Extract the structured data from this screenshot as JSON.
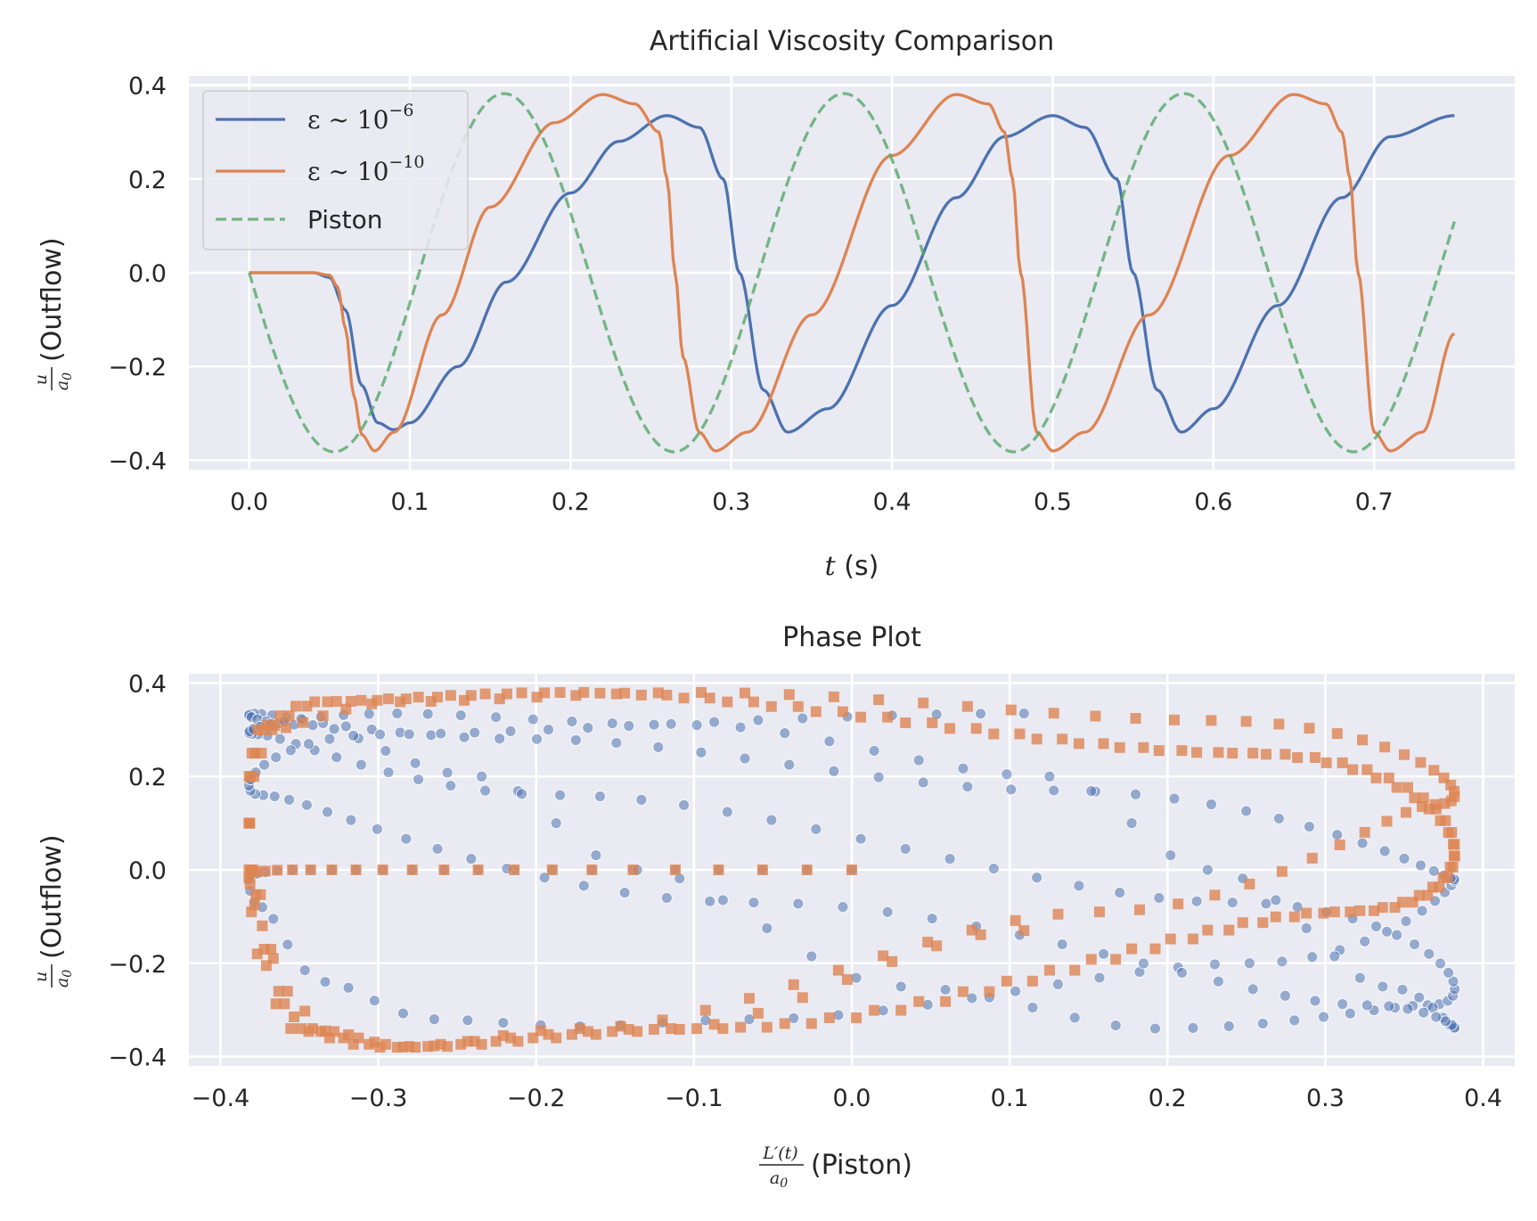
{
  "chart_data": [
    {
      "type": "line",
      "title": "Artificial Viscosity Comparison",
      "xlabel": "t (s)",
      "xlabel_math": "t",
      "xlabel_unit": " (s)",
      "ylabel": "u/a0 (Outflow)",
      "ylabel_suffix": " (Outflow)",
      "xlim": [
        -0.0375,
        0.7875
      ],
      "ylim": [
        -0.42,
        0.42
      ],
      "xticks": [
        0.0,
        0.1,
        0.2,
        0.3,
        0.4,
        0.5,
        0.6,
        0.7
      ],
      "xtick_labels": [
        "0.0",
        "0.1",
        "0.2",
        "0.3",
        "0.4",
        "0.5",
        "0.6",
        "0.7"
      ],
      "yticks": [
        -0.4,
        -0.2,
        0.0,
        0.2,
        0.4
      ],
      "ytick_labels": [
        "−0.4",
        "−0.2",
        "0.0",
        "0.2",
        "0.4"
      ],
      "grid": true,
      "legend_position": "upper-left",
      "series": [
        {
          "name": "ε ~ 10^-6",
          "legend_main": "ε ∼ 10",
          "legend_sup": "−6",
          "color": "#4c72b0",
          "style": "solid",
          "x": [
            0.0,
            0.04,
            0.05,
            0.06,
            0.07,
            0.08,
            0.09,
            0.1,
            0.13,
            0.16,
            0.2,
            0.23,
            0.26,
            0.28,
            0.295,
            0.305,
            0.32,
            0.335,
            0.36,
            0.4,
            0.44,
            0.47,
            0.5,
            0.52,
            0.54,
            0.55,
            0.565,
            0.58,
            0.6,
            0.64,
            0.68,
            0.71,
            0.75
          ],
          "y": [
            0.0,
            0.0,
            -0.01,
            -0.08,
            -0.24,
            -0.32,
            -0.335,
            -0.32,
            -0.2,
            -0.02,
            0.17,
            0.28,
            0.335,
            0.31,
            0.2,
            0.0,
            -0.25,
            -0.34,
            -0.29,
            -0.07,
            0.16,
            0.29,
            0.335,
            0.31,
            0.2,
            0.0,
            -0.25,
            -0.34,
            -0.29,
            -0.07,
            0.16,
            0.29,
            0.335
          ]
        },
        {
          "name": "ε ~ 10^-10",
          "legend_main": "ε ∼ 10",
          "legend_sup": "−10",
          "color": "#dd8452",
          "style": "solid",
          "x": [
            0.0,
            0.04,
            0.05,
            0.055,
            0.06,
            0.065,
            0.07,
            0.078,
            0.09,
            0.12,
            0.15,
            0.19,
            0.22,
            0.24,
            0.255,
            0.26,
            0.265,
            0.27,
            0.28,
            0.29,
            0.31,
            0.35,
            0.4,
            0.44,
            0.46,
            0.47,
            0.475,
            0.48,
            0.49,
            0.5,
            0.52,
            0.56,
            0.61,
            0.65,
            0.67,
            0.68,
            0.685,
            0.69,
            0.7,
            0.71,
            0.73,
            0.75
          ],
          "y": [
            0.0,
            0.0,
            -0.005,
            -0.03,
            -0.12,
            -0.26,
            -0.345,
            -0.38,
            -0.34,
            -0.09,
            0.14,
            0.32,
            0.38,
            0.36,
            0.3,
            0.2,
            0.0,
            -0.18,
            -0.34,
            -0.38,
            -0.34,
            -0.09,
            0.25,
            0.38,
            0.36,
            0.3,
            0.2,
            0.0,
            -0.34,
            -0.38,
            -0.34,
            -0.09,
            0.25,
            0.38,
            0.36,
            0.3,
            0.2,
            0.0,
            -0.34,
            -0.38,
            -0.34,
            -0.13
          ]
        },
        {
          "name": "Piston",
          "legend_main": "Piston",
          "legend_sup": "",
          "color": "#55a868",
          "style": "dashed",
          "function": "-0.382 * sin(2π t / 0.2115)",
          "amplitude": 0.382,
          "period": 0.2115
        }
      ]
    },
    {
      "type": "scatter",
      "title": "Phase Plot",
      "xlabel": "L'(t)/a0 (Piston)",
      "xlabel_suffix": " (Piston)",
      "ylabel": "u/a0 (Outflow)",
      "ylabel_suffix": " (Outflow)",
      "xlim": [
        -0.42,
        0.42
      ],
      "ylim": [
        -0.42,
        0.42
      ],
      "xticks": [
        -0.4,
        -0.3,
        -0.2,
        -0.1,
        0.0,
        0.1,
        0.2,
        0.3,
        0.4
      ],
      "xtick_labels": [
        "−0.4",
        "−0.3",
        "−0.2",
        "−0.1",
        "0.0",
        "0.1",
        "0.2",
        "0.3",
        "0.4"
      ],
      "yticks": [
        -0.4,
        -0.2,
        0.0,
        0.2,
        0.4
      ],
      "ytick_labels": [
        "−0.4",
        "−0.2",
        "0.0",
        "0.2",
        "0.4"
      ],
      "grid": true,
      "series": [
        {
          "name": "ε ~ 10^-6",
          "marker": "circle",
          "color": "#4c72b0",
          "opacity": 0.55,
          "x_of": "Piston",
          "y_of": "ε ~ 10^-6",
          "t_range": [
            0.0,
            0.75
          ],
          "samples": 300
        },
        {
          "name": "ε ~ 10^-10",
          "marker": "square",
          "color": "#dd8452",
          "opacity": 0.8,
          "x_of": "Piston",
          "y_of": "ε ~ 10^-10",
          "t_range": [
            0.0,
            0.75
          ],
          "samples": 300
        }
      ]
    }
  ]
}
